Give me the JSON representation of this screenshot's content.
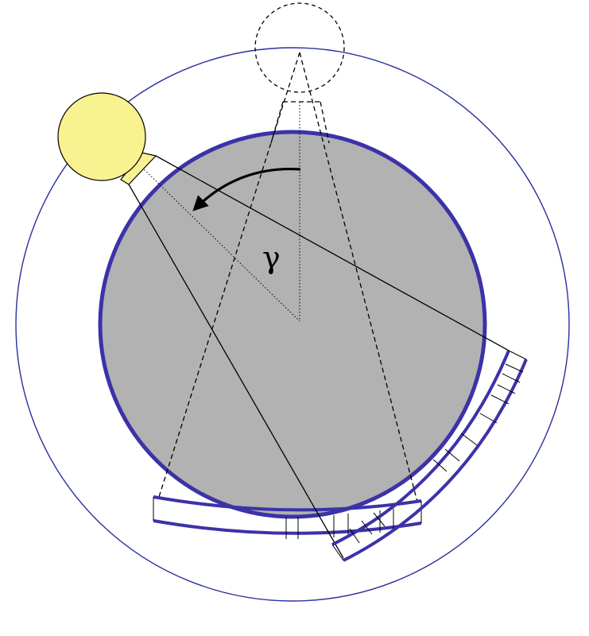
{
  "diagram": {
    "angle_label": "γ"
  },
  "colors": {
    "orbit": "#2a2f9e",
    "object_fill": "#b2b2b2",
    "object_stroke": "#3c32a8",
    "source_fill": "#f8f291",
    "source_stroke": "#000000",
    "detector_stroke": "#3c32a8",
    "line": "#000000"
  }
}
